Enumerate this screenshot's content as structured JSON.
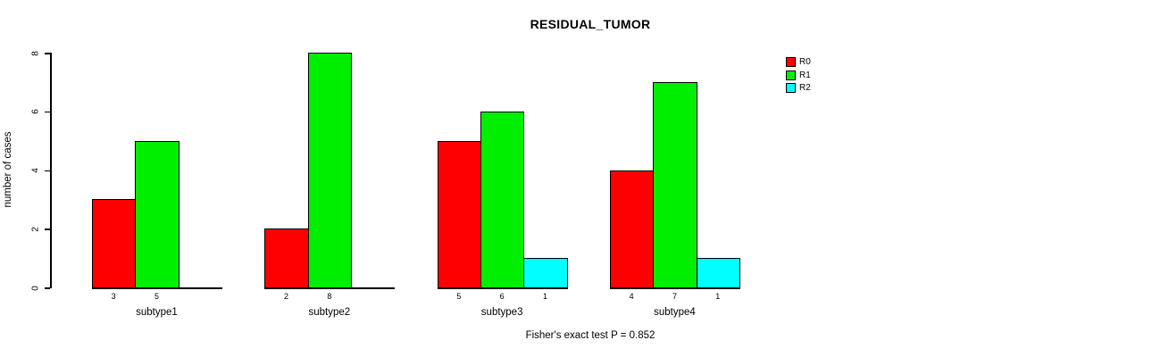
{
  "chart_data": {
    "type": "bar",
    "title": "RESIDUAL_TUMOR",
    "xlabel": "",
    "ylabel": "number of cases",
    "categories": [
      "subtype1",
      "subtype2",
      "subtype3",
      "subtype4"
    ],
    "series": [
      {
        "name": "R0",
        "color": "#FF0000",
        "values": [
          3,
          2,
          5,
          4
        ]
      },
      {
        "name": "R1",
        "color": "#00EE00",
        "values": [
          5,
          8,
          6,
          7
        ]
      },
      {
        "name": "R2",
        "color": "#00FFFF",
        "values": [
          0,
          0,
          1,
          1
        ]
      }
    ],
    "ylim": [
      0,
      8
    ],
    "yticks": [
      0,
      2,
      4,
      6,
      8
    ],
    "grid": false,
    "legend_position": "right",
    "bar_value_labels_shown_for_zero": false,
    "annotation": "Fisher's exact test P = 0.852"
  }
}
